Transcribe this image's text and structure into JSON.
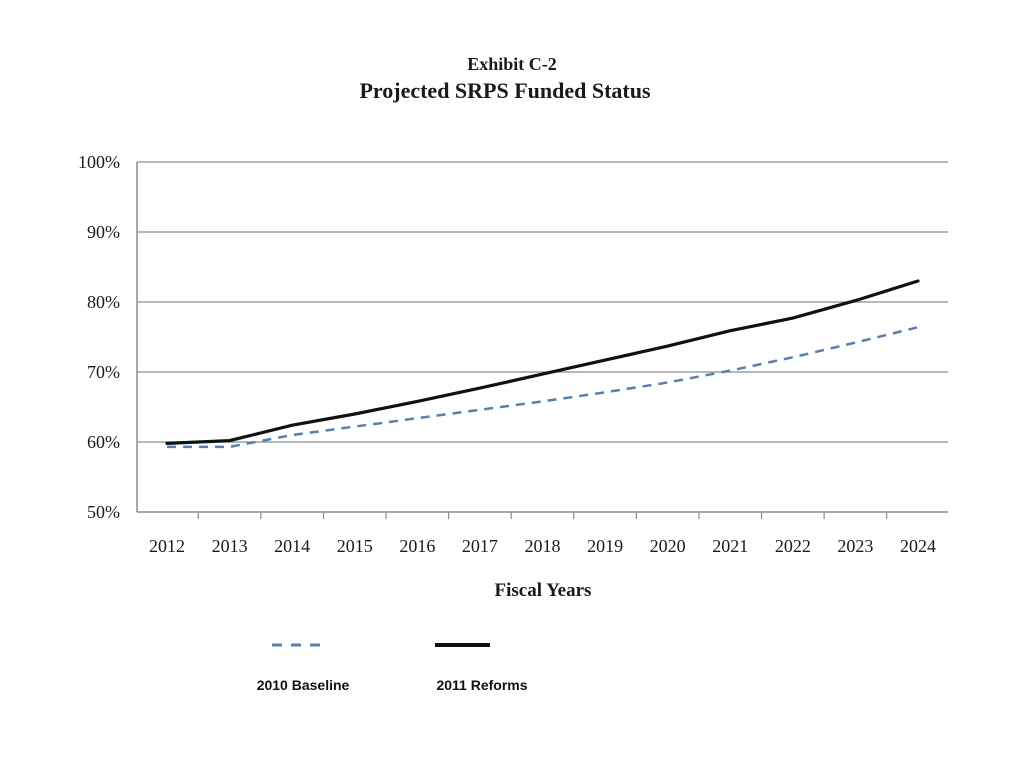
{
  "chart_data": {
    "type": "line",
    "exhibit": "Exhibit C-2",
    "title": "Projected SRPS Funded Status",
    "xlabel": "Fiscal Years",
    "ylabel": "",
    "x": [
      2012,
      2013,
      2014,
      2015,
      2016,
      2017,
      2018,
      2019,
      2020,
      2021,
      2022,
      2023,
      2024
    ],
    "x_tick_labels": [
      "2012",
      "2013",
      "2014",
      "2015",
      "2016",
      "2017",
      "2018",
      "2019",
      "2020",
      "2021",
      "2022",
      "2023",
      "2024"
    ],
    "ylim": [
      50,
      100
    ],
    "y_ticks": [
      50,
      60,
      70,
      80,
      90,
      100
    ],
    "y_tick_labels": [
      "50%",
      "60%",
      "70%",
      "80%",
      "90%",
      "100%"
    ],
    "grid": "horizontal",
    "legend_position": "bottom",
    "series": [
      {
        "name": "2010 Baseline",
        "style": "dashed",
        "color": "#5b7fa6",
        "values": [
          59.3,
          59.3,
          61.0,
          62.2,
          63.4,
          64.6,
          65.8,
          67.1,
          68.5,
          70.2,
          72.1,
          74.2,
          76.4
        ]
      },
      {
        "name": "2011 Reforms",
        "style": "solid",
        "color": "#111111",
        "values": [
          59.8,
          60.2,
          62.4,
          64.0,
          65.8,
          67.7,
          69.7,
          71.7,
          73.7,
          75.9,
          77.7,
          80.2,
          83.0
        ]
      }
    ]
  }
}
